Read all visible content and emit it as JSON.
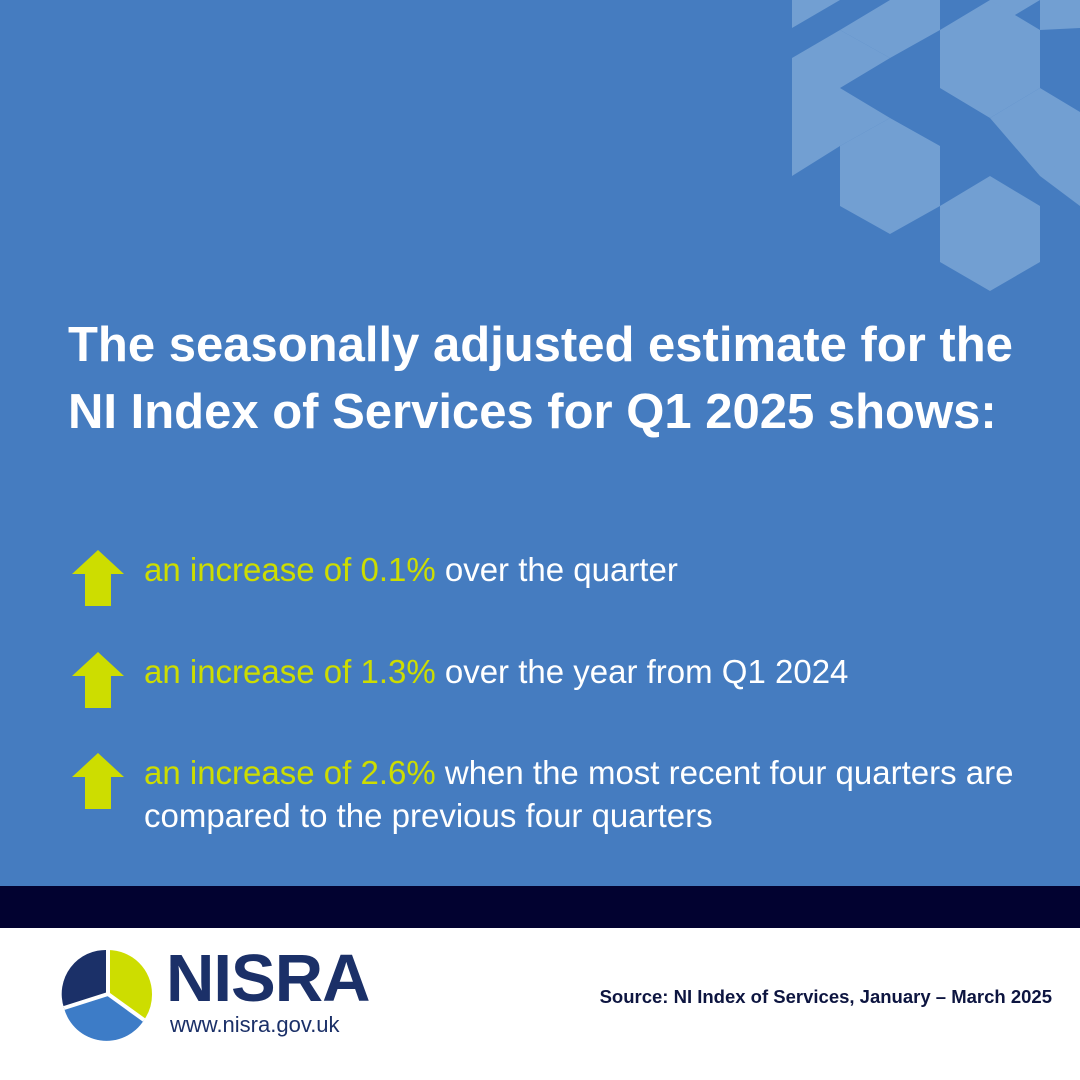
{
  "headline": "The seasonally adjusted estimate for the NI Index of Services for Q1 2025 shows:",
  "points": [
    {
      "direction": "up",
      "highlight": "an increase of 0.1%",
      "text": " over the quarter"
    },
    {
      "direction": "up",
      "highlight": "an increase of 1.3%",
      "text": " over the year from Q1 2024"
    },
    {
      "direction": "up",
      "highlight": "an increase of 2.6%",
      "text": " when the most recent four quarters are compared to the previous four quarters"
    }
  ],
  "footer": {
    "logo_text": "NISRA",
    "website": "www.nisra.gov.uk",
    "source": "Source: NI Index of Services, January – March 2025"
  },
  "colors": {
    "panel": "#457cc0",
    "pattern": "#729fd2",
    "highlight": "#cddd00",
    "arrow": "#cddd00",
    "stripe": "#020230",
    "logo_navy": "#1b3068",
    "logo_blue": "#3d7cc7",
    "logo_lime": "#cddd00"
  },
  "icons": {
    "arrow": "arrow-up-icon",
    "logo": "nisra-logo-icon"
  }
}
